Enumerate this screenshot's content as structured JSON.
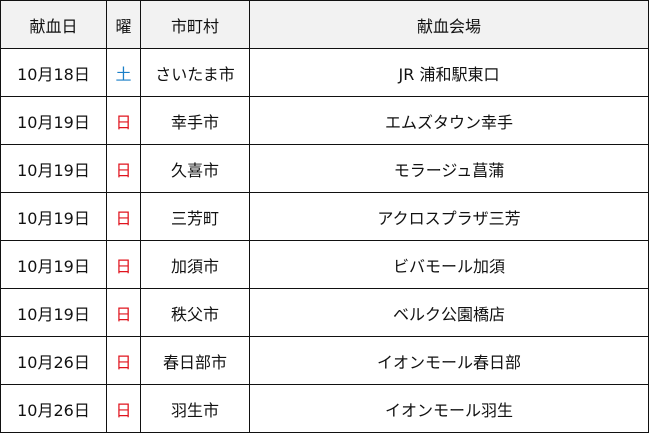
{
  "headers": [
    "献血日",
    "曜",
    "市町村",
    "献血会場"
  ],
  "colors": {
    "saturday": "#1a7fc8",
    "sunday": "#e0141e",
    "header_bg": "#f2f2f2"
  },
  "rows": [
    {
      "date": "10月18日",
      "day": "土",
      "day_type": "saturday",
      "city": "さいたま市",
      "venue": "JR  浦和駅東口"
    },
    {
      "date": "10月19日",
      "day": "日",
      "day_type": "sunday",
      "city": "幸手市",
      "venue": "エムズタウン幸手"
    },
    {
      "date": "10月19日",
      "day": "日",
      "day_type": "sunday",
      "city": "久喜市",
      "venue": "モラージュ菖蒲"
    },
    {
      "date": "10月19日",
      "day": "日",
      "day_type": "sunday",
      "city": "三芳町",
      "venue": "アクロスプラザ三芳"
    },
    {
      "date": "10月19日",
      "day": "日",
      "day_type": "sunday",
      "city": "加須市",
      "venue": "ビバモール加須"
    },
    {
      "date": "10月19日",
      "day": "日",
      "day_type": "sunday",
      "city": "秩父市",
      "venue": "ベルク公園橋店"
    },
    {
      "date": "10月26日",
      "day": "日",
      "day_type": "sunday",
      "city": "春日部市",
      "venue": "イオンモール春日部"
    },
    {
      "date": "10月26日",
      "day": "日",
      "day_type": "sunday",
      "city": "羽生市",
      "venue": "イオンモール羽生"
    }
  ]
}
